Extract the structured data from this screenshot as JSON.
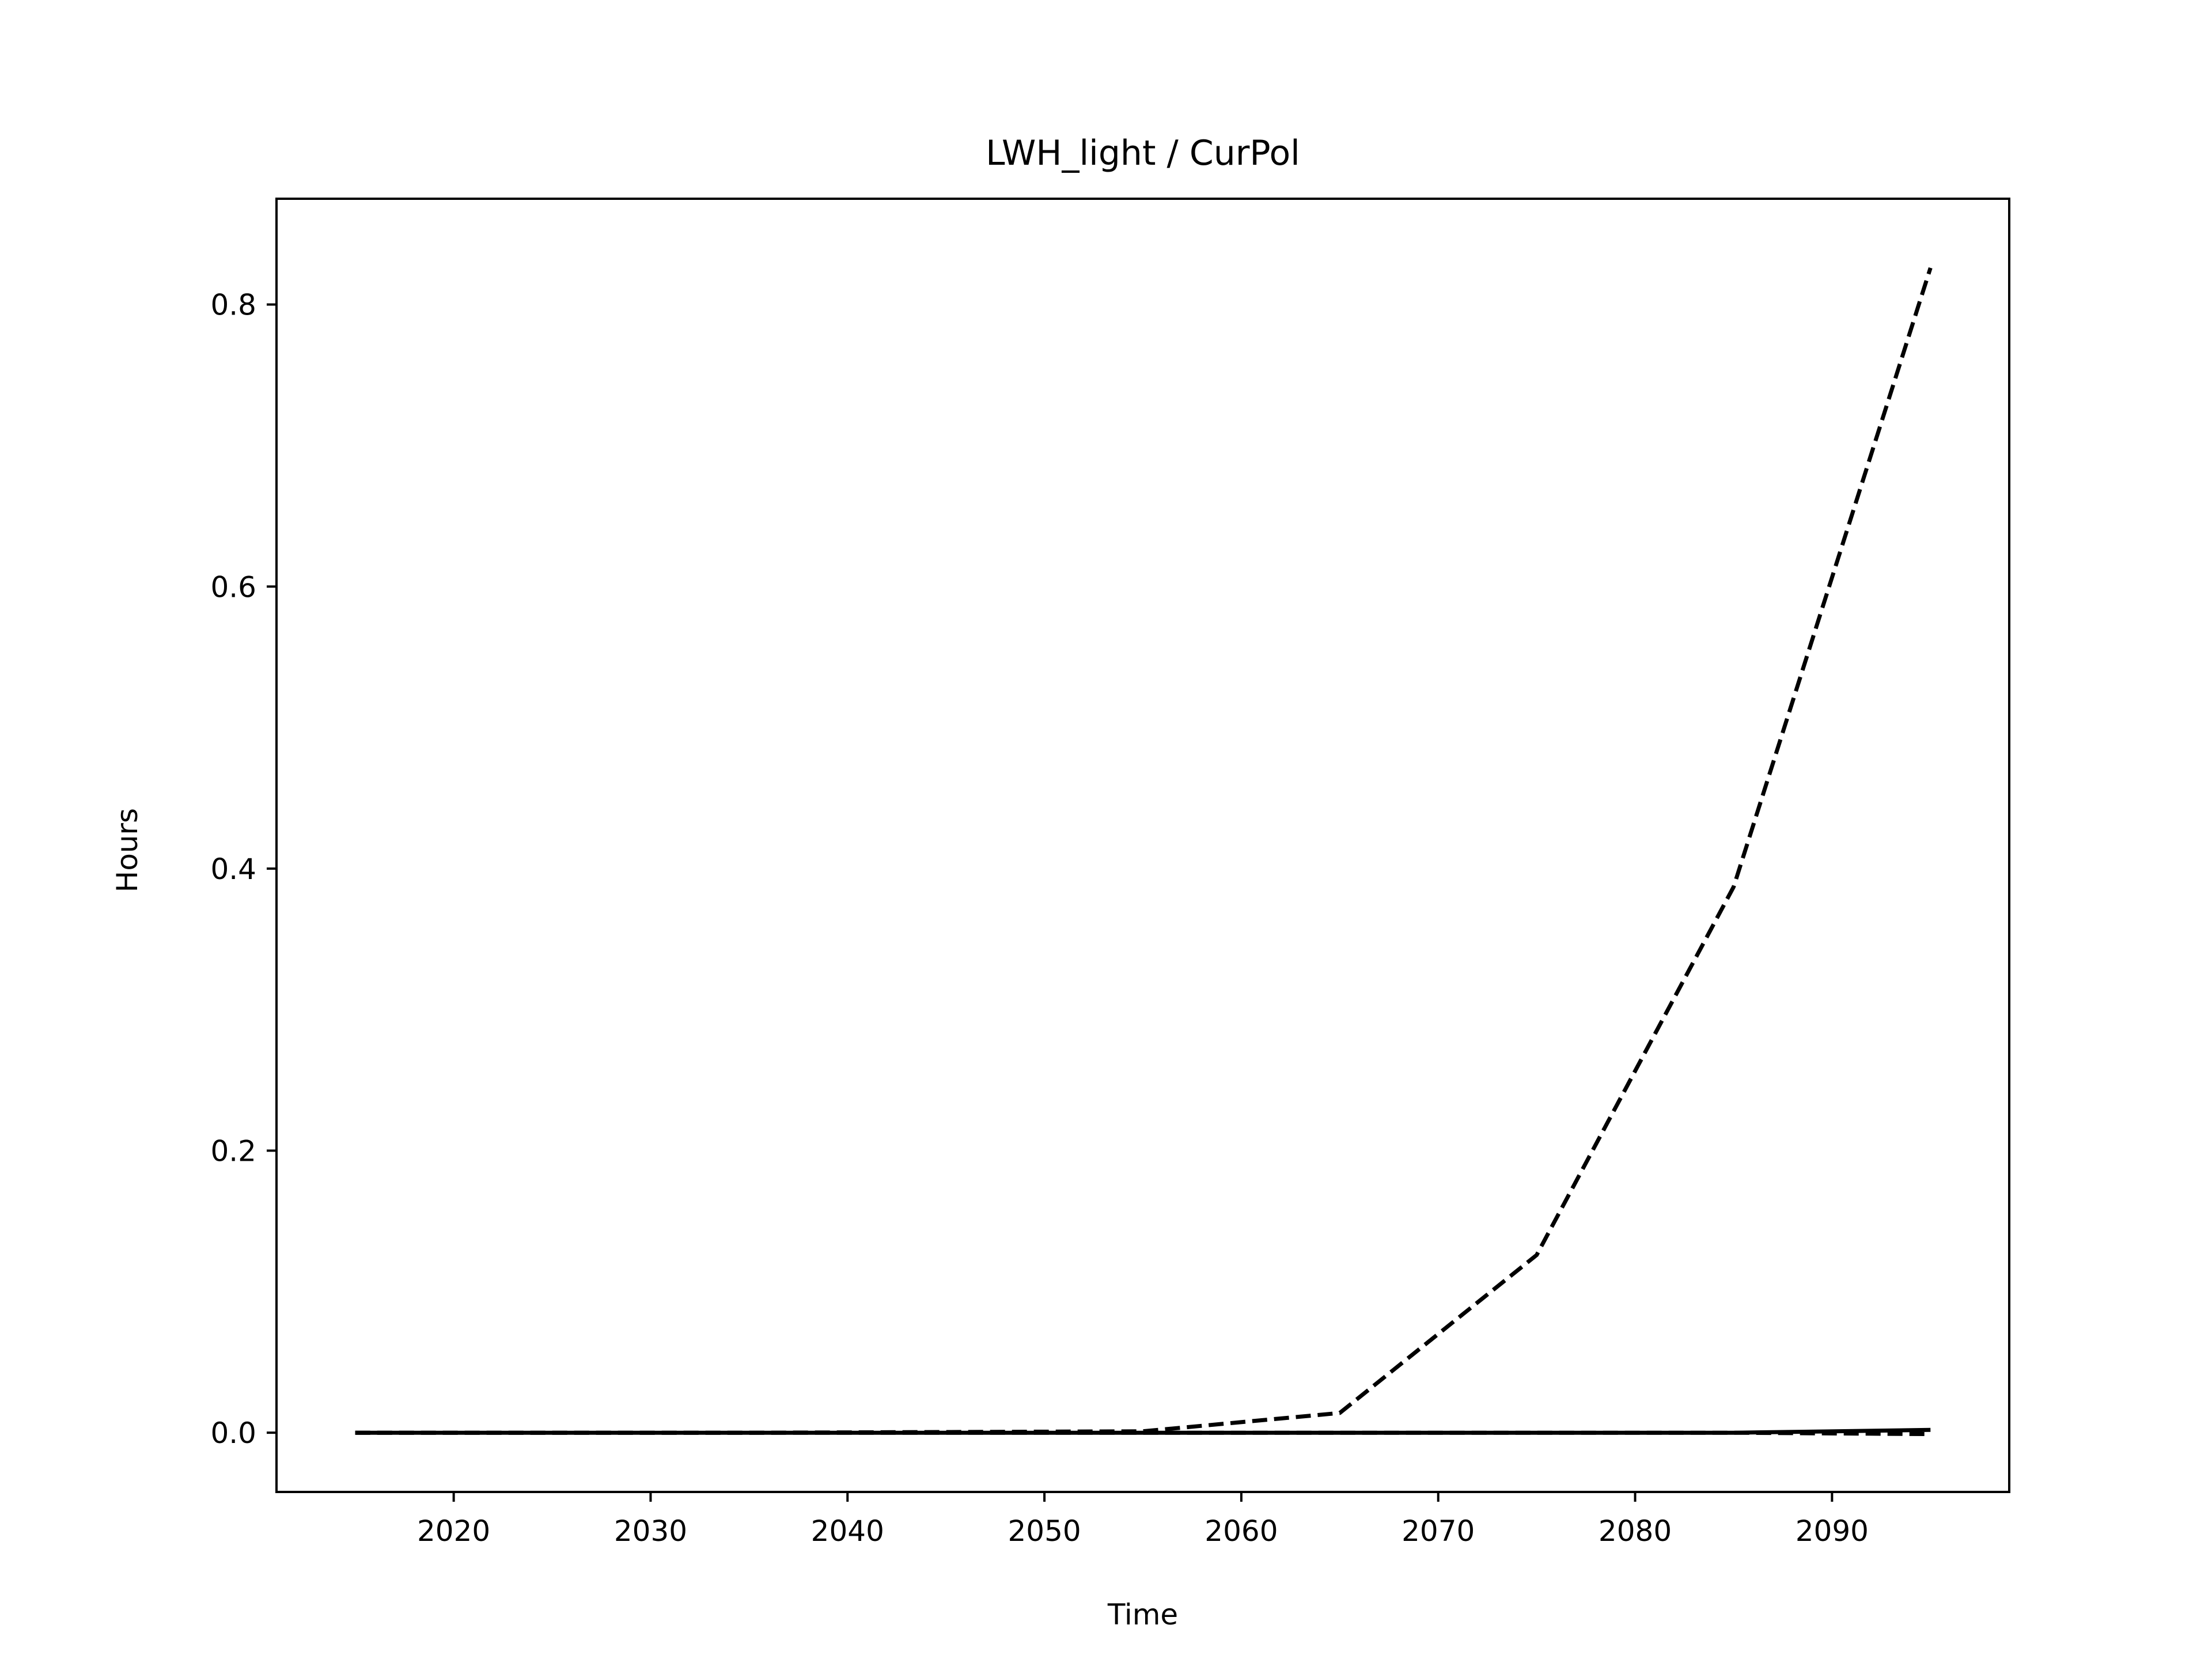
{
  "chart_data": {
    "type": "line",
    "title": "LWH_light / CurPol",
    "xlabel": "Time",
    "ylabel": "Hours",
    "xlim": [
      2011,
      2099
    ],
    "ylim": [
      -0.042,
      0.875
    ],
    "xticks": [
      2020,
      2030,
      2040,
      2050,
      2060,
      2070,
      2080,
      2090
    ],
    "yticks": [
      0.0,
      0.2,
      0.4,
      0.6,
      0.8
    ],
    "ytick_labels": [
      "0.0",
      "0.2",
      "0.4",
      "0.6",
      "0.8"
    ],
    "grid": false,
    "legend": "none",
    "x": [
      2015,
      2025,
      2035,
      2045,
      2055,
      2065,
      2075,
      2085,
      2095
    ],
    "series": [
      {
        "style": "dashed",
        "color": "#000000",
        "values": [
          0.0,
          0.0,
          0.0,
          0.0005,
          0.001,
          0.014,
          0.126,
          0.387,
          0.826
        ]
      },
      {
        "style": "dashed",
        "color": "#000000",
        "values": [
          0.0,
          0.0,
          0.0,
          0.0,
          0.0,
          0.0,
          0.0,
          0.0,
          -0.001
        ]
      },
      {
        "style": "solid",
        "color": "#000000",
        "values": [
          0.0,
          0.0,
          0.0,
          0.0,
          0.0,
          0.0,
          0.0,
          0.0,
          0.002
        ]
      }
    ]
  }
}
